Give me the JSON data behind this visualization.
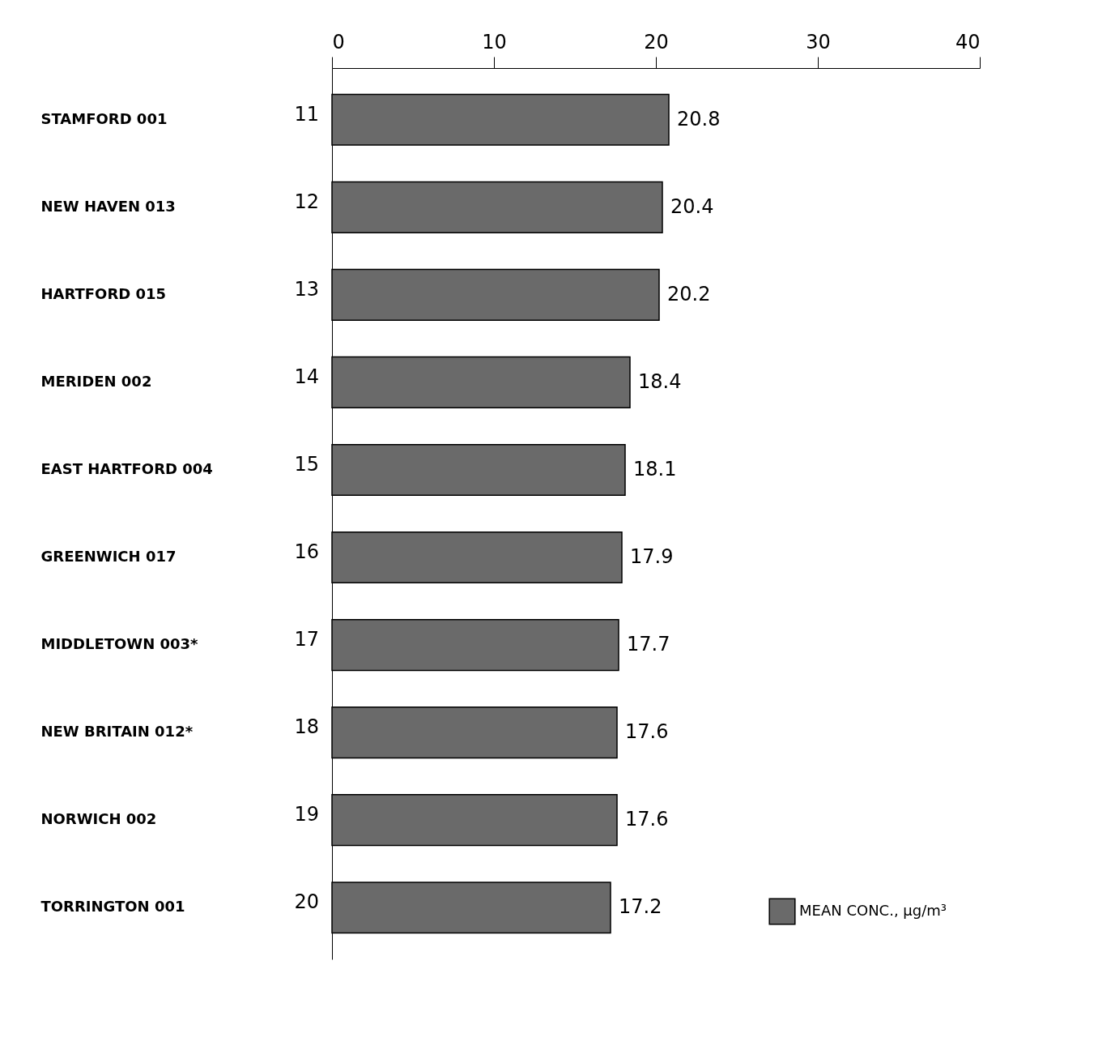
{
  "chart_data": {
    "type": "bar",
    "orientation": "horizontal",
    "categories": [
      "STAMFORD 001",
      "NEW HAVEN 013",
      "HARTFORD 015",
      "MERIDEN 002",
      "EAST HARTFORD 004",
      "GREENWICH 017",
      "MIDDLETOWN 003*",
      "NEW BRITAIN 012*",
      "NORWICH 002",
      "TORRINGTON 001"
    ],
    "series": [
      {
        "name": "MEAN CONC., µg/m³",
        "color": "#6a6a6a",
        "values": [
          20.8,
          20.4,
          20.2,
          18.4,
          18.1,
          17.9,
          17.7,
          17.6,
          17.6,
          17.2
        ]
      }
    ],
    "xlim": [
      0,
      40
    ],
    "xticks": [
      0,
      10,
      20,
      30,
      40
    ],
    "data_labels": true,
    "grid": false,
    "legend": "bottom right",
    "annotations": [
      "11",
      "12",
      "13",
      "14",
      "15",
      "16",
      "17",
      "18",
      "19",
      "20"
    ]
  }
}
